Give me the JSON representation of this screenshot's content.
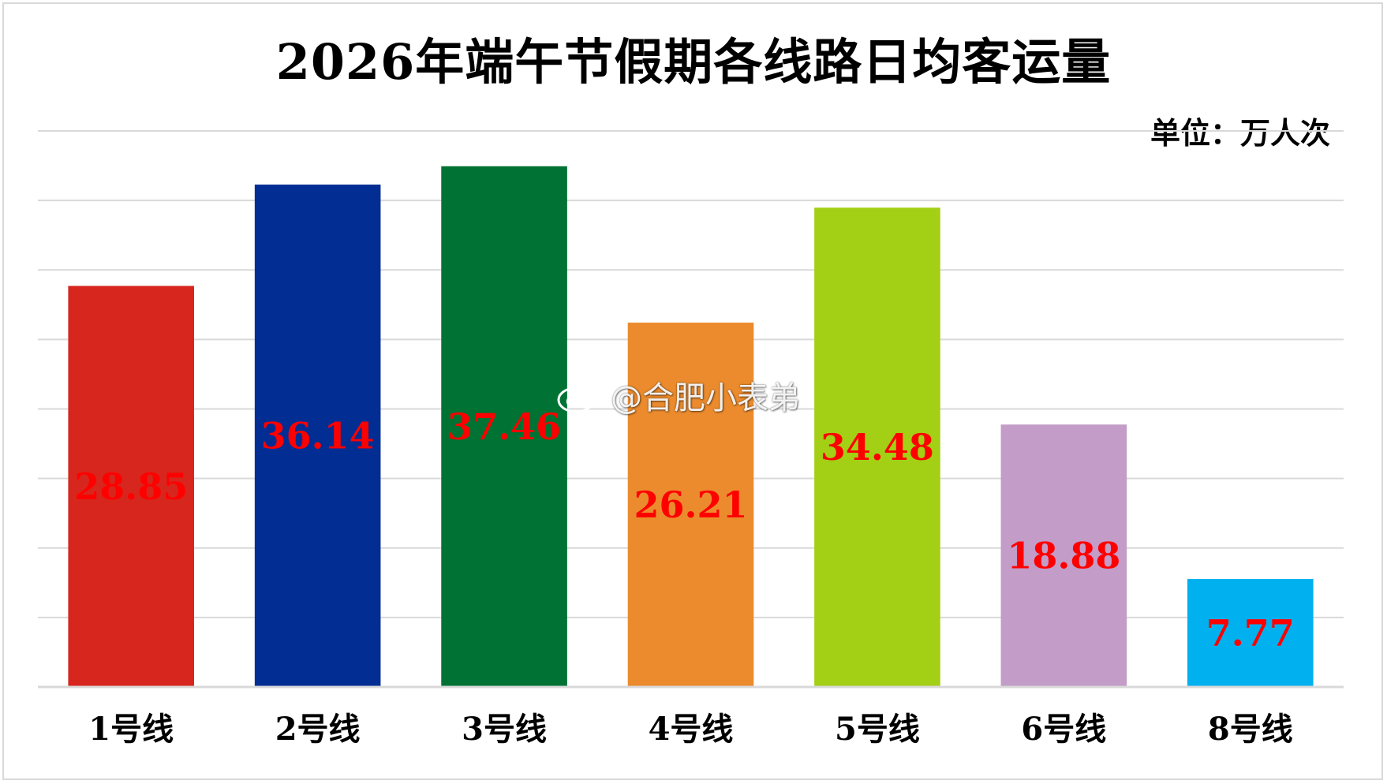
{
  "chart_data": {
    "type": "bar",
    "title": "2026年端午节假期各线路日均客运量",
    "unit": "单位：万人次",
    "categories": [
      "1号线",
      "2号线",
      "3号线",
      "4号线",
      "5号线",
      "6号线",
      "8号线"
    ],
    "values": [
      28.85,
      36.14,
      37.46,
      26.21,
      34.48,
      18.88,
      7.77
    ],
    "value_labels": [
      "28.85",
      "36.14",
      "37.46",
      "26.21",
      "34.48",
      "18.88",
      "7.77"
    ],
    "bar_colors": [
      "#d7261e",
      "#022d93",
      "#007233",
      "#eb8b2d",
      "#a3cf15",
      "#c39cc8",
      "#00b0ef"
    ],
    "data_label_color": "#ff0000",
    "ylim": [
      0,
      40
    ],
    "gridlines": true,
    "legend": false
  },
  "watermark": {
    "text": "@合肥小表弟",
    "icon": "weibo-icon"
  }
}
